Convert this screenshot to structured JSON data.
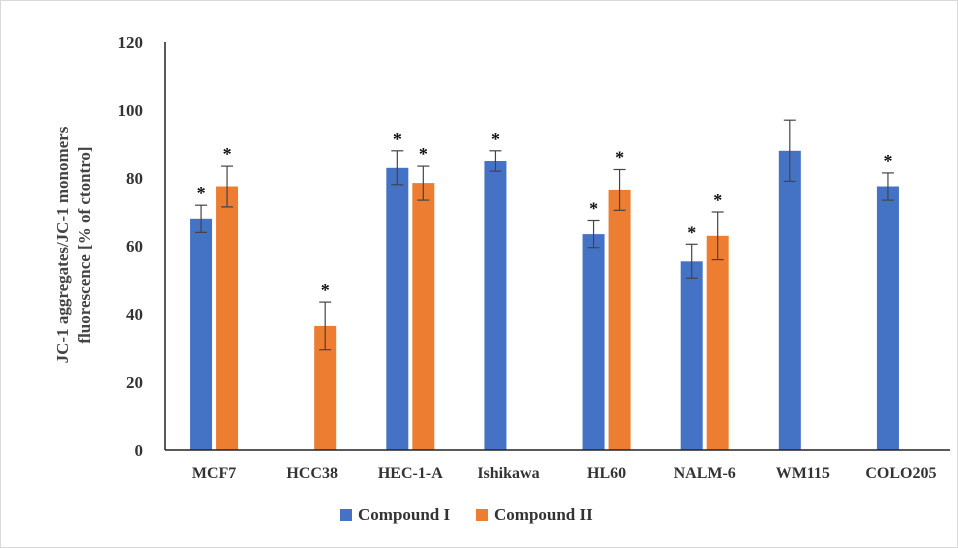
{
  "chart_data": {
    "type": "bar",
    "title": "",
    "xlabel": "",
    "ylabel_lines": [
      "JC-1 aggregates/JC-1 monomers",
      "fluorescence [% of ctontro]"
    ],
    "ylim": [
      0,
      120
    ],
    "yticks": [
      0,
      20,
      40,
      60,
      80,
      100,
      120
    ],
    "grid": false,
    "legend_position": "bottom",
    "categories": [
      "MCF7",
      "HCC38",
      "HEC-1-A",
      "Ishikawa",
      "HL60",
      "NALM-6",
      "WM115",
      "COLO205"
    ],
    "category_labels": [
      "MCF7",
      "HCC38",
      "HEC-1-A",
      "Ishikawa",
      "HL60",
      "NALM-6",
      "WM115",
      "COLO205"
    ],
    "significance_marker": "*",
    "series": [
      {
        "name": "Compound I",
        "color": "#4472C4",
        "values": [
          68,
          null,
          83,
          85,
          63.5,
          55.5,
          88,
          77.5
        ],
        "errors": [
          4,
          null,
          5,
          3,
          4,
          5,
          9,
          4
        ],
        "significant": [
          true,
          false,
          true,
          true,
          true,
          true,
          false,
          true
        ]
      },
      {
        "name": "Compound II",
        "color": "#ED7D31",
        "values": [
          77.5,
          36.5,
          78.5,
          null,
          76.5,
          63,
          null,
          null
        ],
        "errors": [
          6,
          7,
          5,
          null,
          6,
          7,
          null,
          null
        ],
        "significant": [
          true,
          true,
          true,
          false,
          true,
          true,
          false,
          false
        ]
      }
    ]
  }
}
